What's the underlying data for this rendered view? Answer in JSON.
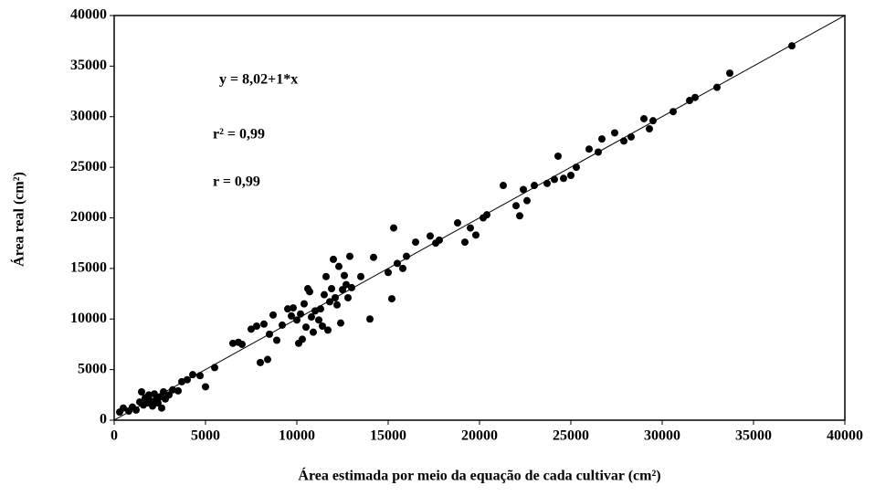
{
  "chart_data": {
    "type": "scatter",
    "x_label": "Área estimada por meio da equação de cada cultivar (cm²)",
    "y_label": "Área real (cm²)",
    "annotations": [
      "y = 8,02+1*x",
      "r² = 0,99",
      "r = 0,99"
    ],
    "xlim": [
      0,
      40000
    ],
    "ylim": [
      0,
      40000
    ],
    "xticks": [
      0,
      5000,
      10000,
      15000,
      20000,
      25000,
      30000,
      35000,
      40000
    ],
    "yticks": [
      0,
      5000,
      10000,
      15000,
      20000,
      25000,
      30000,
      35000,
      40000
    ],
    "color": "#000000",
    "fit_line": {
      "intercept": 8.02,
      "slope": 1
    },
    "x": [
      300,
      500,
      800,
      1000,
      1200,
      1400,
      1500,
      1600,
      1700,
      1800,
      1900,
      2000,
      2100,
      2200,
      2300,
      2400,
      2500,
      2600,
      2700,
      2800,
      3000,
      3200,
      3500,
      3700,
      4000,
      4300,
      4700,
      5000,
      5500,
      6500,
      6800,
      7000,
      7500,
      7800,
      8000,
      8200,
      8400,
      8500,
      8700,
      8900,
      9200,
      9500,
      9700,
      9800,
      10000,
      10100,
      10200,
      10300,
      10400,
      10500,
      10600,
      10700,
      10800,
      10900,
      11000,
      11200,
      11300,
      11400,
      11500,
      11600,
      11700,
      11800,
      11900,
      12000,
      12100,
      12200,
      12300,
      12400,
      12500,
      12600,
      12700,
      12800,
      12900,
      13000,
      13500,
      14000,
      14200,
      15000,
      15200,
      15300,
      15500,
      15800,
      16000,
      16500,
      17300,
      17600,
      17800,
      18800,
      19200,
      19500,
      19800,
      20200,
      20400,
      21300,
      22000,
      22200,
      22400,
      22600,
      23000,
      23700,
      24100,
      24300,
      24600,
      25000,
      25300,
      26000,
      26500,
      26700,
      27400,
      27900,
      28300,
      29000,
      29300,
      29500,
      30600,
      31500,
      31800,
      33000,
      33700,
      37100
    ],
    "y": [
      800,
      1200,
      900,
      1300,
      1000,
      1800,
      2800,
      1500,
      2200,
      1700,
      2500,
      1900,
      1400,
      2600,
      2000,
      1700,
      2300,
      1200,
      2800,
      2100,
      2500,
      3000,
      2900,
      3800,
      4000,
      4500,
      4400,
      3300,
      5200,
      7600,
      7700,
      7500,
      9000,
      9300,
      5700,
      9500,
      6000,
      8500,
      10400,
      7900,
      9400,
      11000,
      10300,
      11100,
      9900,
      7600,
      10500,
      8000,
      11500,
      9200,
      13000,
      12700,
      10200,
      8700,
      10800,
      9900,
      11000,
      9300,
      12400,
      14200,
      8900,
      11700,
      13000,
      15900,
      12100,
      11400,
      15200,
      9600,
      12900,
      14300,
      13400,
      12100,
      16200,
      13100,
      14200,
      10000,
      16100,
      14600,
      12000,
      19000,
      15500,
      15000,
      16200,
      17600,
      18200,
      17500,
      17800,
      19500,
      17600,
      19000,
      18300,
      20000,
      20300,
      23200,
      21200,
      20200,
      22800,
      21700,
      23200,
      23400,
      23800,
      26100,
      23900,
      24200,
      25000,
      26800,
      26500,
      27800,
      28400,
      27600,
      28000,
      29800,
      28800,
      29600,
      30500,
      31600,
      31900,
      32900,
      34300,
      37000
    ]
  }
}
